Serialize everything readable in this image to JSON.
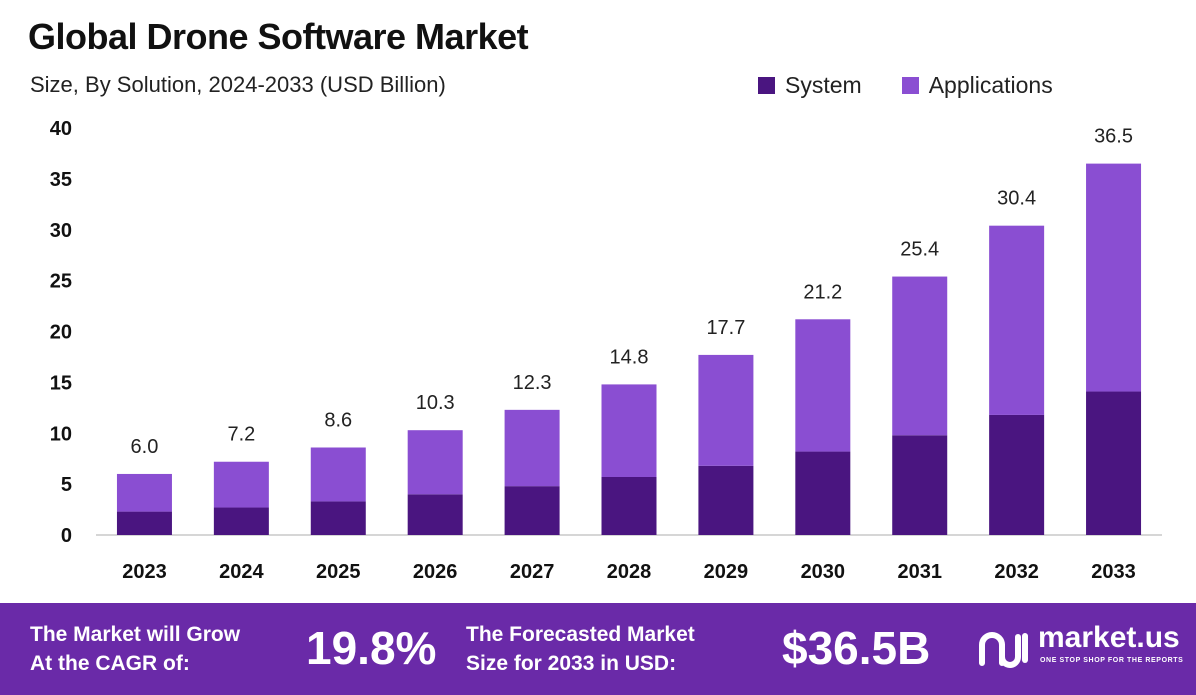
{
  "colors": {
    "system": "#4a1580",
    "applications": "#8a4ed2",
    "banner": "#6a2aa8",
    "axis": "#c8c8c8",
    "text": "#222222"
  },
  "header": {
    "title": "Global Drone Software Market",
    "subtitle": "Size, By Solution, 2024-2033 (USD Billion)"
  },
  "legend": {
    "system": "System",
    "applications": "Applications"
  },
  "chart_data": {
    "type": "bar",
    "stacked": true,
    "categories": [
      "2023",
      "2024",
      "2025",
      "2026",
      "2027",
      "2028",
      "2029",
      "2030",
      "2031",
      "2032",
      "2033"
    ],
    "series": [
      {
        "name": "System",
        "values": [
          2.3,
          2.7,
          3.3,
          4.0,
          4.8,
          5.7,
          6.8,
          8.2,
          9.8,
          11.8,
          14.1
        ]
      },
      {
        "name": "Applications",
        "values": [
          3.7,
          4.5,
          5.3,
          6.3,
          7.5,
          9.1,
          10.9,
          13.0,
          15.6,
          18.6,
          22.4
        ]
      }
    ],
    "totals": [
      "6.0",
      "7.2",
      "8.6",
      "10.3",
      "12.3",
      "14.8",
      "17.7",
      "21.2",
      "25.4",
      "30.4",
      "36.5"
    ],
    "ylim": [
      0,
      40
    ],
    "yticks": [
      0,
      5,
      10,
      15,
      20,
      25,
      30,
      35,
      40
    ],
    "grid": false
  },
  "banner": {
    "cagr_label_line1": "The Market will Grow",
    "cagr_label_line2": "At the CAGR of:",
    "cagr_value": "19.8%",
    "forecast_label_line1": "The Forecasted Market",
    "forecast_label_line2": "Size for 2033 in USD:",
    "forecast_value": "$36.5B",
    "brand_name": "market.us",
    "brand_tagline": "ONE STOP SHOP FOR THE REPORTS"
  }
}
